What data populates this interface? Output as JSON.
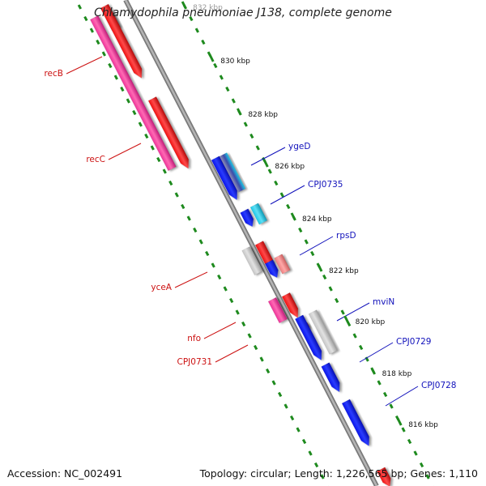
{
  "title": "Chlamydophila pneumoniae J138, complete genome",
  "footer": {
    "accession": "Accession: NC_002491",
    "summary": "Topology: circular; Length: 1,226,565 bp; Genes: 1,110"
  },
  "colors": {
    "backbone": "#888888",
    "ticks": "#1e8a1e",
    "tick_label": "#111111",
    "reverse_label": "#cc1111",
    "forward_label": "#1111bb",
    "blue": "#0a14e8",
    "cyan": "#1ec8e6",
    "red": "#ee1111",
    "magenta": "#ee3399",
    "pink": "#ec7f7f",
    "grey": "#c6c6c6"
  },
  "kbp_ticks": [
    "816 kbp",
    "818 kbp",
    "820 kbp",
    "822 kbp",
    "824 kbp",
    "826 kbp",
    "828 kbp",
    "830 kbp",
    "832 kbp"
  ],
  "labels": {
    "reverse": [
      "recB",
      "recC",
      "yceA",
      "nfo",
      "CPJ0731"
    ],
    "forward": [
      "ygeD",
      "CPJ0735",
      "rpsD",
      "mviN",
      "CPJ0729",
      "CPJ0728"
    ]
  }
}
